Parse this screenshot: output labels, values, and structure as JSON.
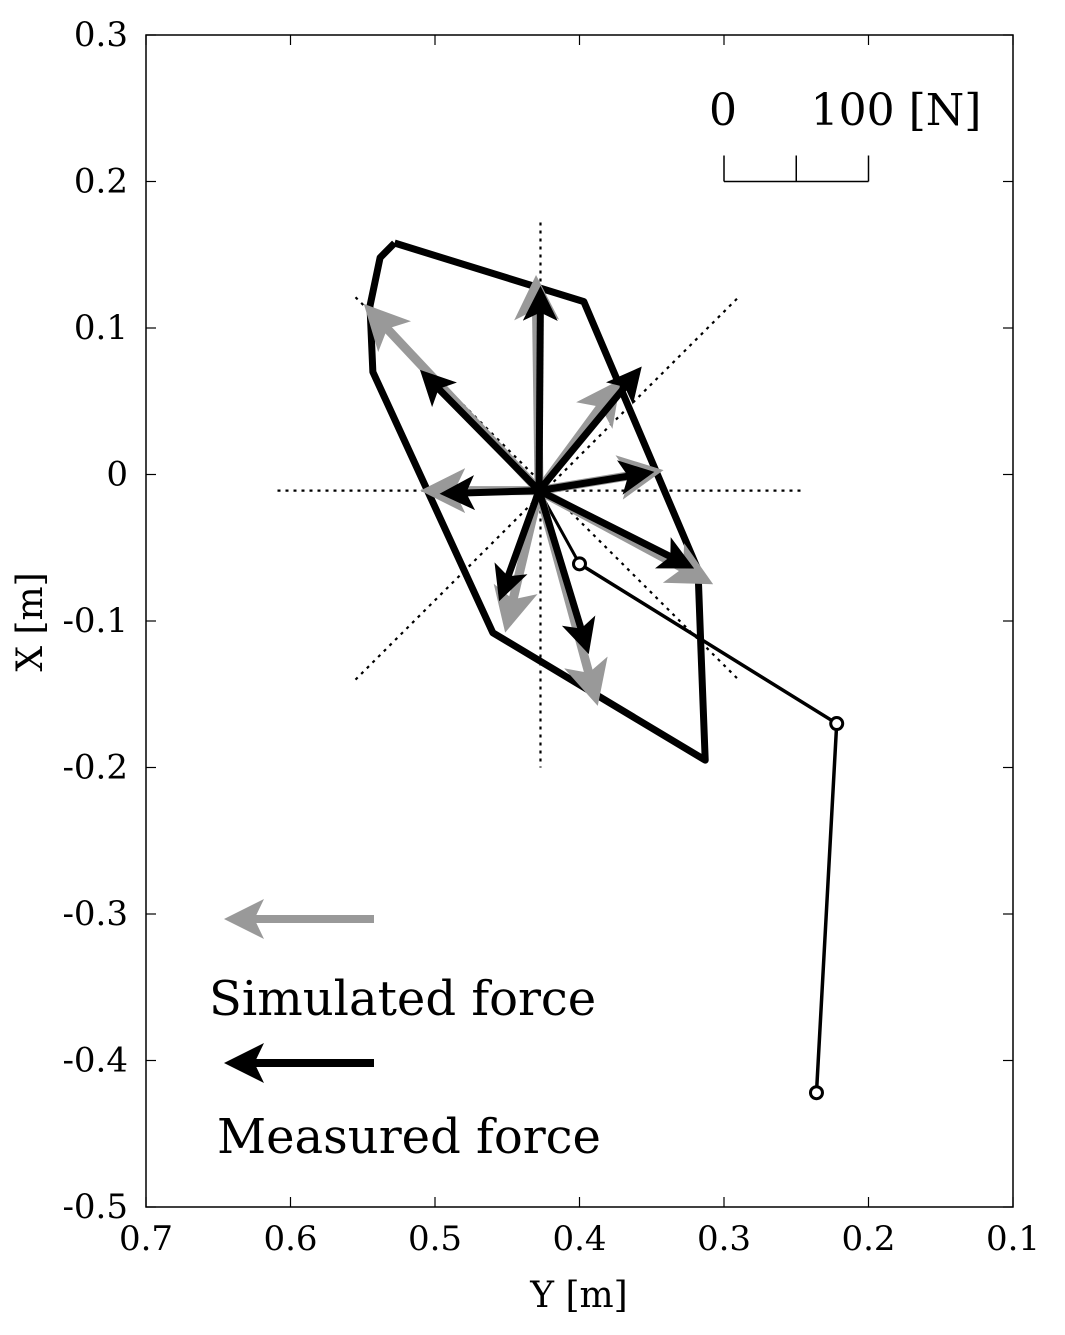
{
  "chart_data": {
    "type": "scatter",
    "xlabel": "Y [m]",
    "ylabel": "X [m]",
    "xlim": [
      0.7,
      0.1
    ],
    "ylim": [
      -0.5,
      0.3
    ],
    "x_ticks": [
      "0.7",
      "0.6",
      "0.5",
      "0.4",
      "0.3",
      "0.2",
      "0.1"
    ],
    "y_ticks": [
      "0.3",
      "0.2",
      "0.1",
      "0",
      "-0.1",
      "-0.2",
      "-0.3",
      "-0.4",
      "-0.5"
    ],
    "x_tick_values": [
      0.7,
      0.6,
      0.5,
      0.4,
      0.3,
      0.2,
      0.1
    ],
    "y_tick_values": [
      0.3,
      0.2,
      0.1,
      0,
      -0.1,
      -0.2,
      -0.3,
      -0.4,
      -0.5
    ],
    "grid": false,
    "colors": {
      "measured": "#000000",
      "simulated": "#999999",
      "frame": "#000000"
    },
    "force_scale": {
      "label_zero": "0",
      "label_max": "100 [N]",
      "y_start": 0.3,
      "y_end": 0.2,
      "y_mid": 0.25,
      "x_at": 0.2
    },
    "origin": [
      0.428,
      -0.011
    ],
    "polygon": [
      [
        0.528,
        0.158
      ],
      [
        0.538,
        0.148
      ],
      [
        0.545,
        0.115
      ],
      [
        0.543,
        0.07
      ],
      [
        0.46,
        -0.108
      ],
      [
        0.313,
        -0.195
      ],
      [
        0.316,
        -0.118
      ],
      [
        0.318,
        -0.065
      ],
      [
        0.397,
        0.118
      ],
      [
        0.528,
        0.158
      ]
    ],
    "dotted_lines": [
      [
        [
          0.427,
          0.172
        ],
        [
          0.427,
          -0.2
        ]
      ],
      [
        [
          0.609,
          -0.011
        ],
        [
          0.245,
          -0.011
        ]
      ],
      [
        [
          0.555,
          0.121
        ],
        [
          0.29,
          -0.14
        ]
      ],
      [
        [
          0.555,
          -0.14
        ],
        [
          0.29,
          0.121
        ]
      ]
    ],
    "arm": [
      [
        0.4,
        -0.061
      ],
      [
        0.222,
        -0.17
      ],
      [
        0.236,
        -0.422
      ]
    ],
    "series": [
      {
        "name": "Simulated force",
        "arrows": [
          [
            0.545,
            0.112
          ],
          [
            0.43,
            0.13
          ],
          [
            0.375,
            0.06
          ],
          [
            0.348,
            0.002
          ],
          [
            0.313,
            -0.072
          ],
          [
            0.389,
            -0.152
          ],
          [
            0.45,
            -0.102
          ],
          [
            0.504,
            -0.011
          ]
        ]
      },
      {
        "name": "Measured force",
        "arrows": [
          [
            0.507,
            0.068
          ],
          [
            0.427,
            0.124
          ],
          [
            0.36,
            0.07
          ],
          [
            0.353,
            0.001
          ],
          [
            0.325,
            -0.062
          ],
          [
            0.395,
            -0.118
          ],
          [
            0.454,
            -0.082
          ],
          [
            0.492,
            -0.013
          ]
        ]
      }
    ]
  }
}
